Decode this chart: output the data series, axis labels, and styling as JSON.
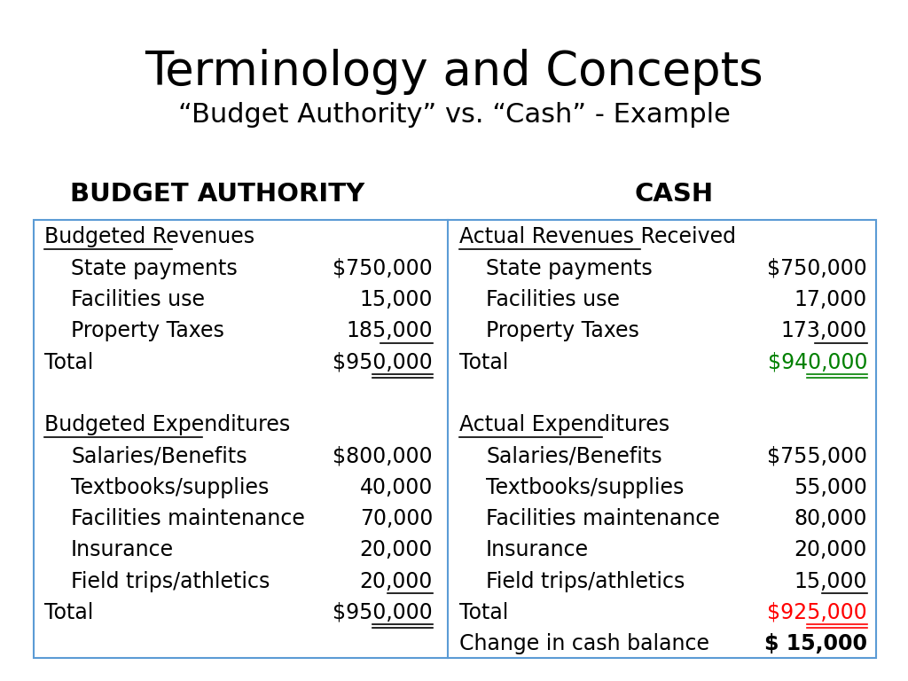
{
  "title": "Terminology and Concepts",
  "subtitle": "“Budget Authority” vs. “Cash” - Example",
  "left_header": "BUDGET AUTHORITY",
  "right_header": "CASH",
  "left_col": [
    {
      "label": "Budgeted Revenues",
      "value": "",
      "indent": false,
      "underline_label": true,
      "underline_value": false,
      "double_underline": false,
      "style": "normal"
    },
    {
      "label": "State payments",
      "value": "$750,000",
      "indent": true,
      "underline_label": false,
      "underline_value": false,
      "double_underline": false,
      "style": "normal"
    },
    {
      "label": "Facilities use",
      "value": "15,000",
      "indent": true,
      "underline_label": false,
      "underline_value": false,
      "double_underline": false,
      "style": "normal"
    },
    {
      "label": "Property Taxes",
      "value": "185,000",
      "indent": true,
      "underline_label": false,
      "underline_value": true,
      "double_underline": false,
      "style": "normal"
    },
    {
      "label": "Total",
      "value": "$950,000",
      "indent": false,
      "underline_label": false,
      "underline_value": true,
      "double_underline": true,
      "style": "normal"
    },
    {
      "label": "",
      "value": "",
      "indent": false,
      "underline_label": false,
      "underline_value": false,
      "double_underline": false,
      "style": "normal"
    },
    {
      "label": "Budgeted Expenditures",
      "value": "",
      "indent": false,
      "underline_label": true,
      "underline_value": false,
      "double_underline": false,
      "style": "normal"
    },
    {
      "label": "Salaries/Benefits",
      "value": "$800,000",
      "indent": true,
      "underline_label": false,
      "underline_value": false,
      "double_underline": false,
      "style": "normal"
    },
    {
      "label": "Textbooks/supplies",
      "value": "40,000",
      "indent": true,
      "underline_label": false,
      "underline_value": false,
      "double_underline": false,
      "style": "normal"
    },
    {
      "label": "Facilities maintenance",
      "value": "70,000",
      "indent": true,
      "underline_label": false,
      "underline_value": false,
      "double_underline": false,
      "style": "normal"
    },
    {
      "label": "Insurance",
      "value": "20,000",
      "indent": true,
      "underline_label": false,
      "underline_value": false,
      "double_underline": false,
      "style": "normal"
    },
    {
      "label": "Field trips/athletics",
      "value": "20,000",
      "indent": true,
      "underline_label": false,
      "underline_value": true,
      "double_underline": false,
      "style": "normal"
    },
    {
      "label": "Total",
      "value": "$950,000",
      "indent": false,
      "underline_label": false,
      "underline_value": true,
      "double_underline": true,
      "style": "normal"
    },
    {
      "label": "",
      "value": "",
      "indent": false,
      "underline_label": false,
      "underline_value": false,
      "double_underline": false,
      "style": "normal"
    }
  ],
  "right_col": [
    {
      "label": "Actual Revenues Received",
      "value": "",
      "indent": false,
      "underline_label": true,
      "underline_value": false,
      "double_underline": false,
      "style": "normal"
    },
    {
      "label": "State payments",
      "value": "$750,000",
      "indent": true,
      "underline_label": false,
      "underline_value": false,
      "double_underline": false,
      "style": "normal"
    },
    {
      "label": "Facilities use",
      "value": "17,000",
      "indent": true,
      "underline_label": false,
      "underline_value": false,
      "double_underline": false,
      "style": "normal"
    },
    {
      "label": "Property Taxes",
      "value": "173,000",
      "indent": true,
      "underline_label": false,
      "underline_value": true,
      "double_underline": false,
      "style": "normal"
    },
    {
      "label": "Total",
      "value": "$940,000",
      "indent": false,
      "underline_label": false,
      "underline_value": true,
      "double_underline": true,
      "style": "green"
    },
    {
      "label": "",
      "value": "",
      "indent": false,
      "underline_label": false,
      "underline_value": false,
      "double_underline": false,
      "style": "normal"
    },
    {
      "label": "Actual Expenditures",
      "value": "",
      "indent": false,
      "underline_label": true,
      "underline_value": false,
      "double_underline": false,
      "style": "normal"
    },
    {
      "label": "Salaries/Benefits",
      "value": "$755,000",
      "indent": true,
      "underline_label": false,
      "underline_value": false,
      "double_underline": false,
      "style": "normal"
    },
    {
      "label": "Textbooks/supplies",
      "value": "55,000",
      "indent": true,
      "underline_label": false,
      "underline_value": false,
      "double_underline": false,
      "style": "normal"
    },
    {
      "label": "Facilities maintenance",
      "value": "80,000",
      "indent": true,
      "underline_label": false,
      "underline_value": false,
      "double_underline": false,
      "style": "normal"
    },
    {
      "label": "Insurance",
      "value": "20,000",
      "indent": true,
      "underline_label": false,
      "underline_value": false,
      "double_underline": false,
      "style": "normal"
    },
    {
      "label": "Field trips/athletics",
      "value": "15,000",
      "indent": true,
      "underline_label": false,
      "underline_value": true,
      "double_underline": false,
      "style": "normal"
    },
    {
      "label": "Total",
      "value": "$925,000",
      "indent": false,
      "underline_label": false,
      "underline_value": true,
      "double_underline": true,
      "style": "red"
    },
    {
      "label": "Change in cash balance",
      "value": "$ 15,000",
      "indent": false,
      "underline_label": false,
      "underline_value": false,
      "double_underline": false,
      "style": "bold"
    }
  ],
  "bg_color": "#ffffff",
  "border_color": "#5b9bd5",
  "title_fontsize": 38,
  "subtitle_fontsize": 22,
  "header_fontsize": 21,
  "body_fontsize": 17,
  "green_color": "#008000",
  "red_color": "#ff0000",
  "black_color": "#000000"
}
